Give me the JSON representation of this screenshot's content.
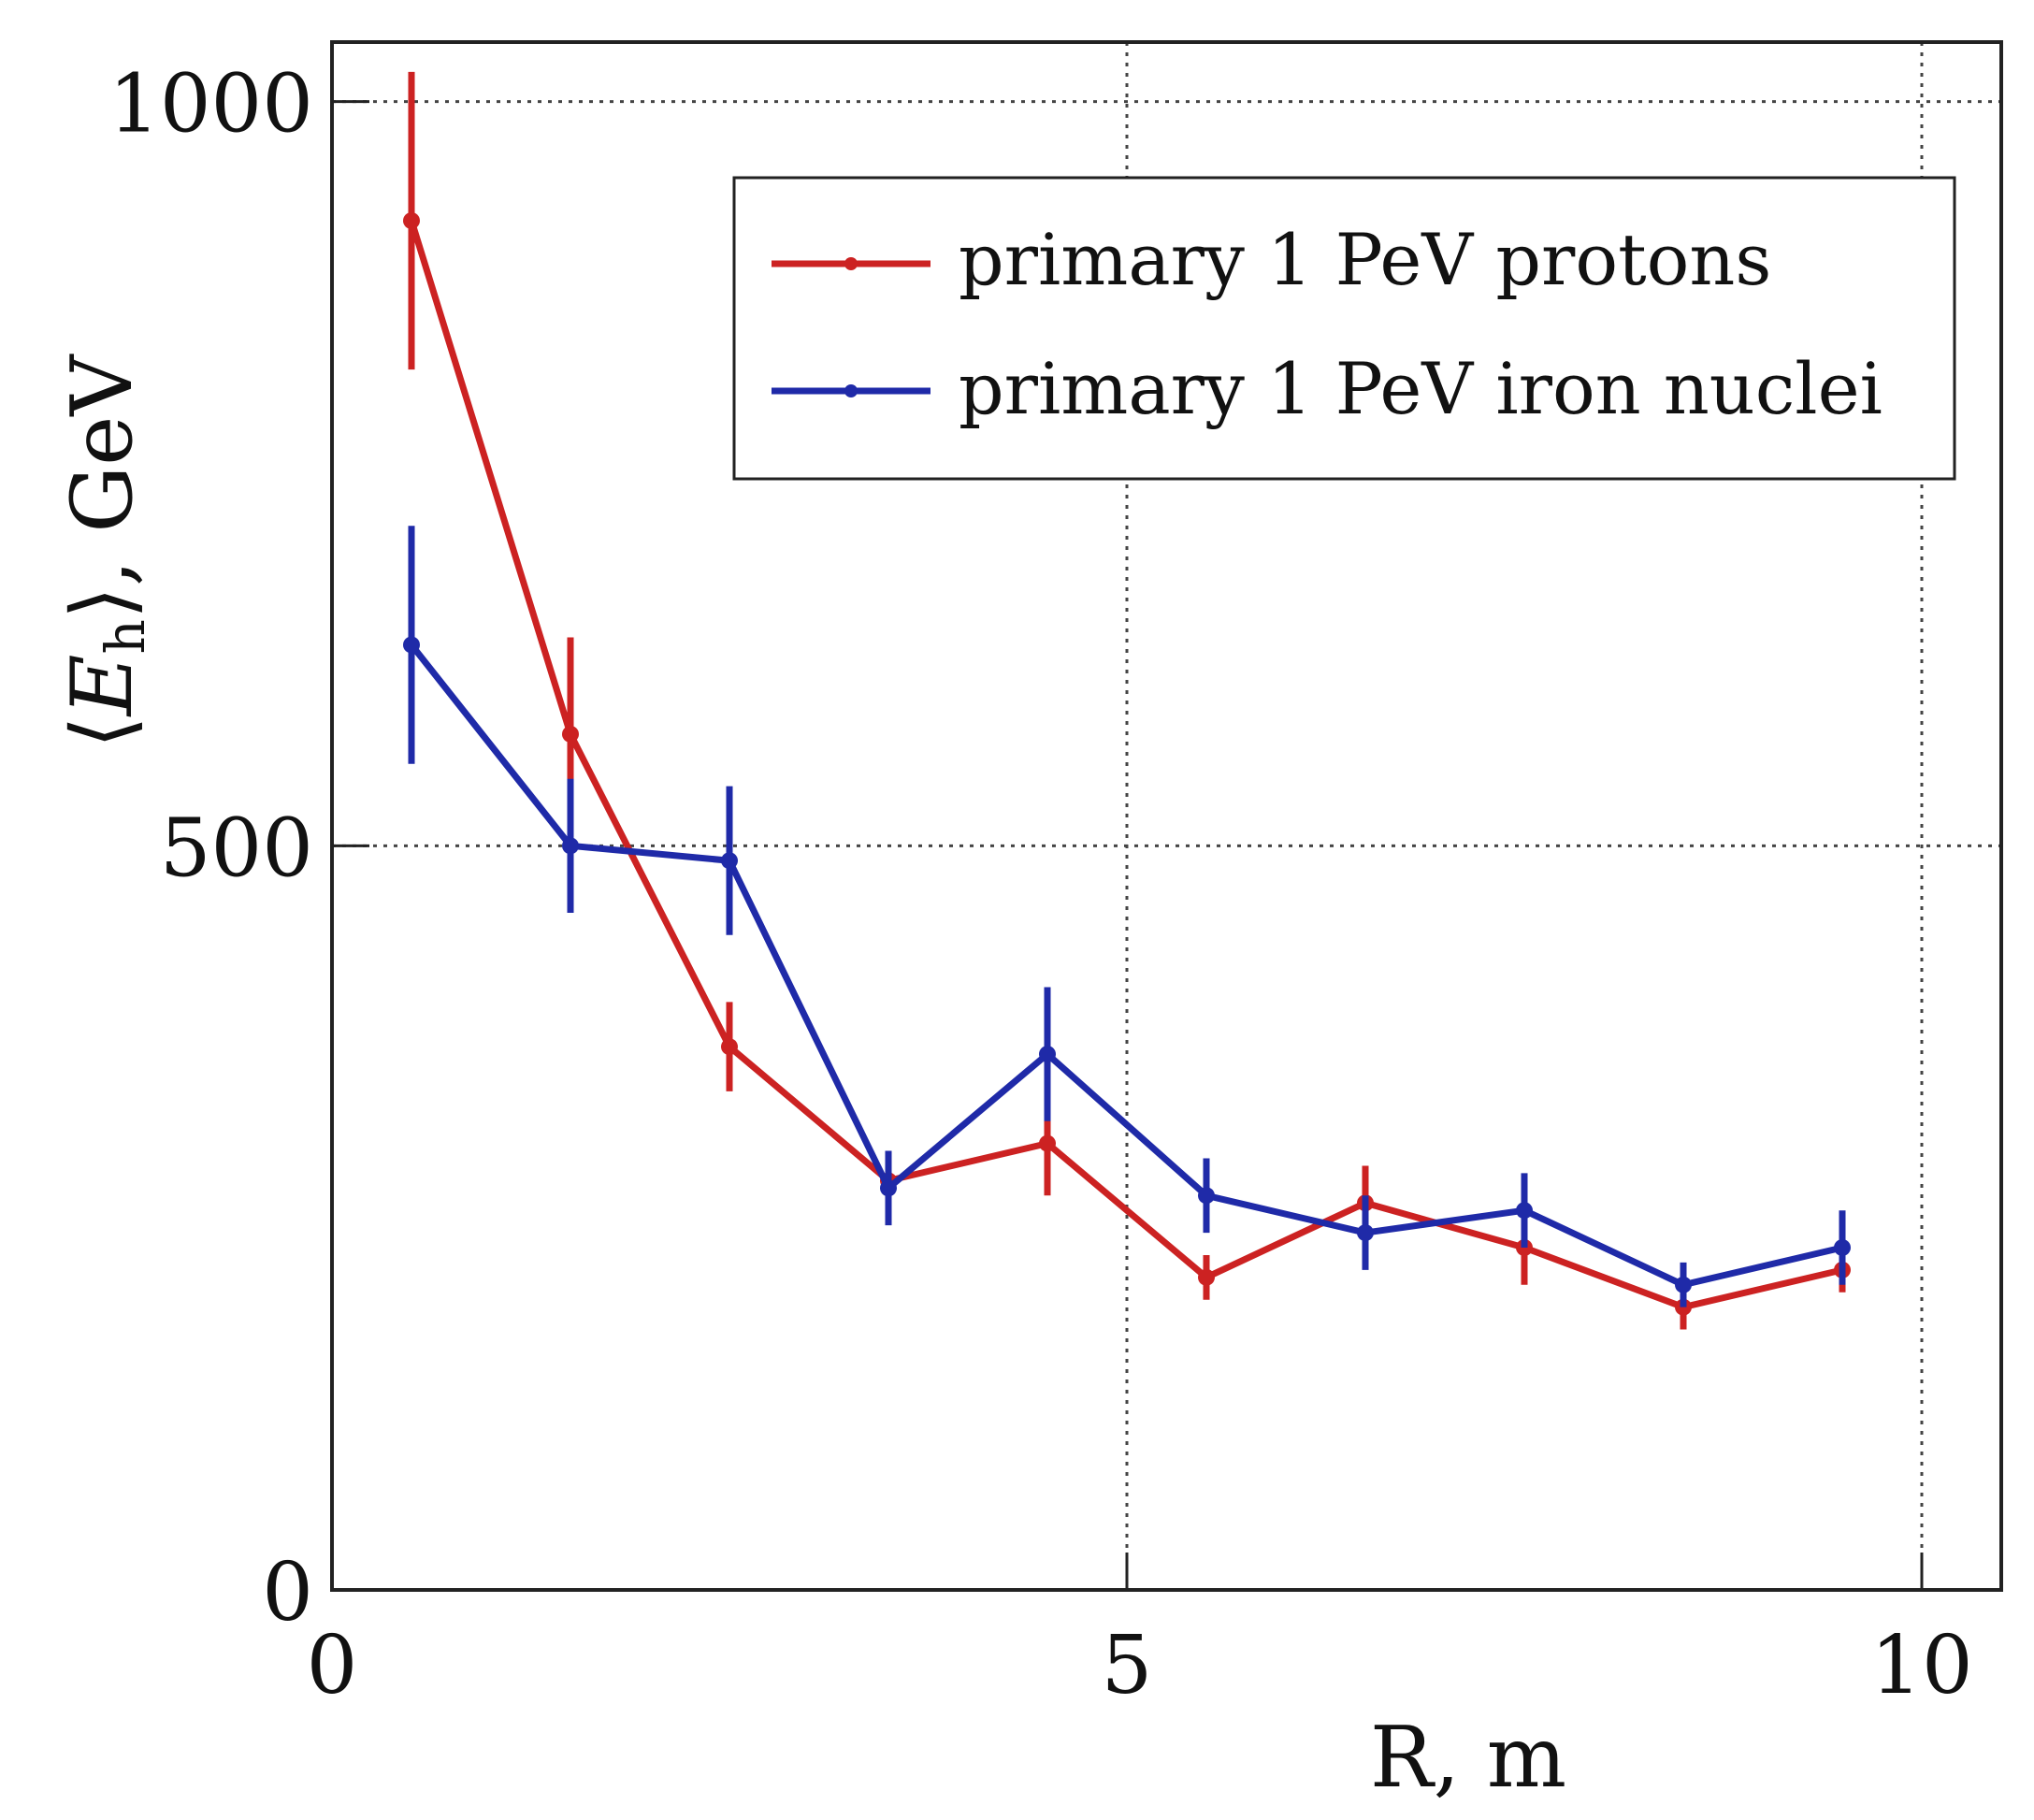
{
  "chart_data": {
    "type": "line",
    "title": "",
    "xlabel": "R, m",
    "ylabel_parts": [
      "⟨",
      "E",
      "h",
      "⟩, GeV"
    ],
    "xlim": [
      0,
      10.5
    ],
    "ylim": [
      0,
      1040
    ],
    "grid": true,
    "legend_position": "top-right",
    "x_ticks": [
      0,
      5,
      10
    ],
    "y_ticks": [
      0,
      500,
      1000
    ],
    "x_tick_labels": [
      "0",
      "5",
      "10"
    ],
    "y_tick_labels": [
      "0",
      "500",
      "1000"
    ],
    "series": [
      {
        "name": "primary 1 PeV protons",
        "color": "#cc2222",
        "x": [
          0.5,
          1.5,
          2.5,
          3.5,
          4.5,
          5.5,
          6.5,
          7.5,
          8.5,
          9.5
        ],
        "y": [
          920,
          575,
          365,
          275,
          300,
          210,
          260,
          230,
          190,
          215
        ],
        "err": [
          100,
          65,
          30,
          20,
          35,
          15,
          25,
          25,
          15,
          15
        ]
      },
      {
        "name": "primary 1 PeV iron nuclei",
        "color": "#1f2aa8",
        "x": [
          0.5,
          1.5,
          2.5,
          3.5,
          4.5,
          5.5,
          6.5,
          7.5,
          8.5,
          9.5
        ],
        "y": [
          635,
          500,
          490,
          270,
          360,
          265,
          240,
          255,
          205,
          230
        ],
        "err": [
          80,
          45,
          50,
          25,
          45,
          25,
          25,
          25,
          15,
          25
        ]
      }
    ]
  }
}
